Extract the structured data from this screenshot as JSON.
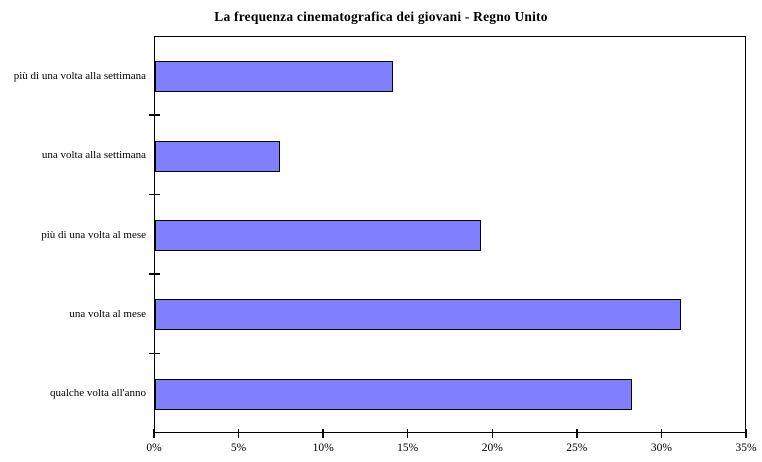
{
  "title": "La frequenza cinematografica dei giovani - Regno Unito",
  "chart_data": {
    "type": "bar",
    "orientation": "horizontal",
    "title": "La frequenza cinematografica dei giovani - Regno Unito",
    "categories": [
      "più di una volta alla settimana",
      "una volta alla settimana",
      "più di una volta al mese",
      "una volta al mese",
      "qualche volta all'anno"
    ],
    "values": [
      14.1,
      7.4,
      19.3,
      31.1,
      28.2
    ],
    "value_unit": "%",
    "xlabel": "",
    "ylabel": "",
    "xlim": [
      0,
      35
    ],
    "x_tick_step": 5,
    "x_tick_labels": [
      "0%",
      "5%",
      "10%",
      "15%",
      "20%",
      "25%",
      "30%",
      "35%"
    ],
    "grid": false,
    "legend": false,
    "colors": {
      "bar_fill": "#8080FF",
      "bar_border": "#000000",
      "axis": "#000000",
      "background": "#FFFFFF",
      "text": "#000000"
    }
  }
}
